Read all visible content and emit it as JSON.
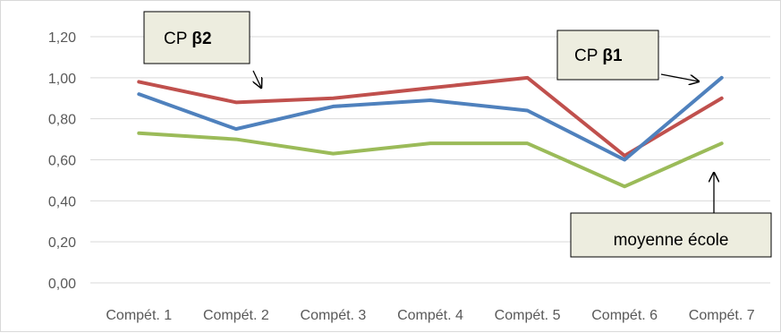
{
  "chart_data": {
    "type": "line",
    "categories": [
      "Compét. 1",
      "Compét. 2",
      "Compét. 3",
      "Compét. 4",
      "Compét. 5",
      "Compét. 6",
      "Compét. 7"
    ],
    "series": [
      {
        "name": "CP β2",
        "color": "#c0504d",
        "values": [
          0.98,
          0.88,
          0.9,
          0.95,
          1.0,
          0.62,
          0.9
        ]
      },
      {
        "name": "CP β1",
        "color": "#4f81bd",
        "values": [
          0.92,
          0.75,
          0.86,
          0.89,
          0.84,
          0.6,
          1.0
        ]
      },
      {
        "name": "moyenne école",
        "color": "#9bbb59",
        "values": [
          0.73,
          0.7,
          0.63,
          0.68,
          0.68,
          0.47,
          0.68
        ]
      }
    ],
    "ylim": [
      0,
      1.2
    ],
    "yticks": [
      0,
      0.2,
      0.4,
      0.6,
      0.8,
      1.0,
      1.2
    ],
    "ytick_labels": [
      "0,00",
      "0,20",
      "0,40",
      "0,60",
      "0,80",
      "1,00",
      "1,20"
    ],
    "grid": true,
    "legend": "callouts",
    "callouts": [
      {
        "series_index": 0,
        "prefix": "CP ",
        "emphasis": "β2"
      },
      {
        "series_index": 1,
        "prefix": "CP ",
        "emphasis": "β1"
      },
      {
        "series_index": 2,
        "prefix": "moyenne école",
        "emphasis": ""
      }
    ],
    "gridline_color": "#d9d9d9",
    "callout_fill": "#ededdf"
  }
}
